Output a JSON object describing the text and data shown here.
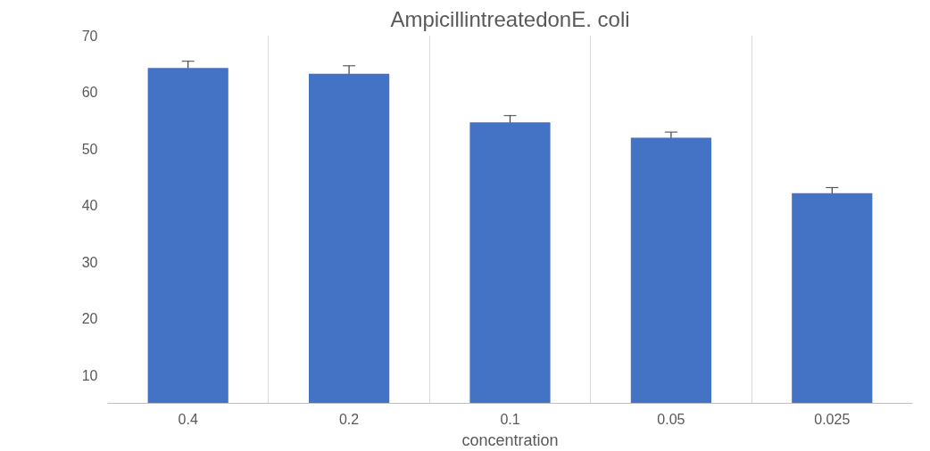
{
  "chart_data": {
    "type": "bar",
    "title": "AmpicillintreatedonE. coli",
    "xlabel": "concentration",
    "categories": [
      "0.4",
      "0.2",
      "0.1",
      "0.05",
      "0.025"
    ],
    "series": [
      {
        "color": "#4472c4",
        "values": [
          64.2,
          63.2,
          54.6,
          51.9,
          42.1
        ],
        "errors": [
          1.2,
          1.4,
          1.2,
          1.0,
          1.0
        ]
      }
    ],
    "ylim": [
      5,
      70
    ],
    "yticks": [
      10,
      20,
      30,
      40,
      50,
      60,
      70
    ],
    "grid": "x"
  }
}
